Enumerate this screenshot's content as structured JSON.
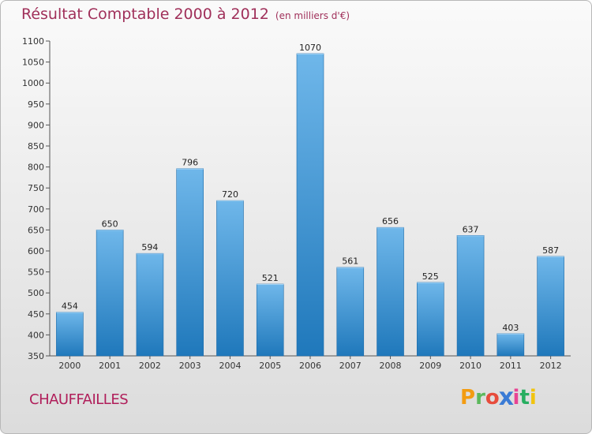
{
  "chart_data": {
    "type": "bar",
    "title": "Résultat Comptable 2000 à 2012",
    "subtitle": "(en milliers d'€)",
    "categories": [
      "2000",
      "2001",
      "2002",
      "2003",
      "2004",
      "2005",
      "2006",
      "2007",
      "2008",
      "2009",
      "2010",
      "2011",
      "2012"
    ],
    "values": [
      454,
      650,
      594,
      796,
      720,
      521,
      1070,
      561,
      656,
      525,
      637,
      403,
      587
    ],
    "ylim": [
      350,
      1100
    ],
    "yticks": [
      350,
      400,
      450,
      500,
      550,
      600,
      650,
      700,
      750,
      800,
      850,
      900,
      950,
      1000,
      1050,
      1100
    ],
    "xlabel": "",
    "ylabel": "",
    "grid": false
  },
  "footer": {
    "city": "CHAUFFAILLES",
    "logo_letters": [
      "P",
      "r",
      "o",
      "x",
      "i",
      "t",
      "i"
    ]
  },
  "colors": {
    "bar_light": "#6fb7ea",
    "bar_dark": "#1f78bb",
    "title": "#a0305a",
    "logo": [
      "#f39c12",
      "#5cb85c",
      "#e74c3c",
      "#3a7bd5",
      "#e84393",
      "#27ae60",
      "#f1c40f"
    ]
  }
}
